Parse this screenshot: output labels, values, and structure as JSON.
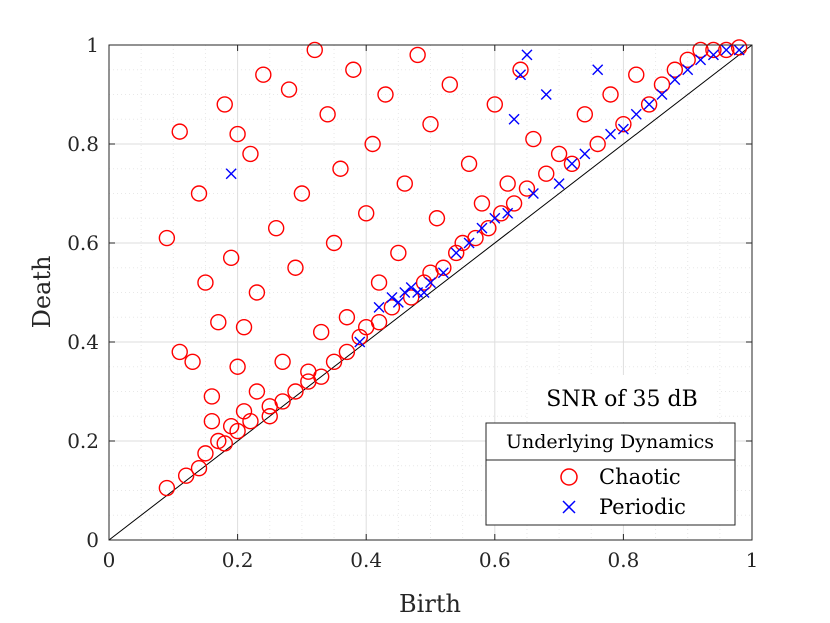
{
  "chart_data": {
    "type": "scatter",
    "title": "",
    "xlabel": "Birth",
    "ylabel": "Death",
    "xlim": [
      0,
      1
    ],
    "ylim": [
      0,
      1
    ],
    "xticks": [
      "0",
      "0.2",
      "0.4",
      "0.6",
      "0.8",
      "1"
    ],
    "yticks": [
      "0",
      "0.2",
      "0.4",
      "0.6",
      "0.8",
      "1"
    ],
    "grid": true,
    "minor_grid": true,
    "reference_line": "y = x",
    "annotation": "SNR of 35 dB",
    "legend_title": "Underlying Dynamics",
    "legend_position": "bottom-right",
    "colors": {
      "chaotic": "#ff0000",
      "periodic": "#0000ff",
      "diagonal": "#000000"
    },
    "series": [
      {
        "name": "Chaotic",
        "marker": "circle",
        "color": "#ff0000",
        "points": [
          [
            0.09,
            0.105
          ],
          [
            0.09,
            0.61
          ],
          [
            0.11,
            0.825
          ],
          [
            0.11,
            0.38
          ],
          [
            0.12,
            0.13
          ],
          [
            0.13,
            0.36
          ],
          [
            0.14,
            0.145
          ],
          [
            0.14,
            0.7
          ],
          [
            0.15,
            0.175
          ],
          [
            0.15,
            0.52
          ],
          [
            0.16,
            0.24
          ],
          [
            0.16,
            0.29
          ],
          [
            0.17,
            0.2
          ],
          [
            0.17,
            0.44
          ],
          [
            0.18,
            0.195
          ],
          [
            0.18,
            0.88
          ],
          [
            0.19,
            0.23
          ],
          [
            0.19,
            0.57
          ],
          [
            0.2,
            0.22
          ],
          [
            0.2,
            0.35
          ],
          [
            0.2,
            0.82
          ],
          [
            0.21,
            0.26
          ],
          [
            0.21,
            0.43
          ],
          [
            0.22,
            0.78
          ],
          [
            0.22,
            0.24
          ],
          [
            0.23,
            0.3
          ],
          [
            0.23,
            0.5
          ],
          [
            0.24,
            0.94
          ],
          [
            0.25,
            0.25
          ],
          [
            0.25,
            0.27
          ],
          [
            0.26,
            0.63
          ],
          [
            0.27,
            0.28
          ],
          [
            0.27,
            0.36
          ],
          [
            0.28,
            0.91
          ],
          [
            0.29,
            0.3
          ],
          [
            0.29,
            0.55
          ],
          [
            0.3,
            0.7
          ],
          [
            0.31,
            0.32
          ],
          [
            0.31,
            0.34
          ],
          [
            0.32,
            0.99
          ],
          [
            0.33,
            0.33
          ],
          [
            0.33,
            0.42
          ],
          [
            0.34,
            0.86
          ],
          [
            0.35,
            0.36
          ],
          [
            0.35,
            0.6
          ],
          [
            0.36,
            0.75
          ],
          [
            0.37,
            0.38
          ],
          [
            0.37,
            0.45
          ],
          [
            0.38,
            0.95
          ],
          [
            0.39,
            0.41
          ],
          [
            0.4,
            0.43
          ],
          [
            0.4,
            0.66
          ],
          [
            0.41,
            0.8
          ],
          [
            0.42,
            0.44
          ],
          [
            0.42,
            0.52
          ],
          [
            0.43,
            0.9
          ],
          [
            0.44,
            0.47
          ],
          [
            0.45,
            0.58
          ],
          [
            0.46,
            0.72
          ],
          [
            0.47,
            0.49
          ],
          [
            0.48,
            0.98
          ],
          [
            0.49,
            0.52
          ],
          [
            0.5,
            0.54
          ],
          [
            0.5,
            0.84
          ],
          [
            0.51,
            0.65
          ],
          [
            0.52,
            0.55
          ],
          [
            0.53,
            0.92
          ],
          [
            0.54,
            0.58
          ],
          [
            0.55,
            0.6
          ],
          [
            0.56,
            0.76
          ],
          [
            0.57,
            0.61
          ],
          [
            0.58,
            0.68
          ],
          [
            0.59,
            0.63
          ],
          [
            0.6,
            0.88
          ],
          [
            0.61,
            0.66
          ],
          [
            0.62,
            0.72
          ],
          [
            0.63,
            0.68
          ],
          [
            0.64,
            0.95
          ],
          [
            0.65,
            0.71
          ],
          [
            0.66,
            0.81
          ],
          [
            0.68,
            0.74
          ],
          [
            0.7,
            0.78
          ],
          [
            0.72,
            0.76
          ],
          [
            0.74,
            0.86
          ],
          [
            0.76,
            0.8
          ],
          [
            0.78,
            0.9
          ],
          [
            0.8,
            0.84
          ],
          [
            0.82,
            0.94
          ],
          [
            0.84,
            0.88
          ],
          [
            0.86,
            0.92
          ],
          [
            0.88,
            0.95
          ],
          [
            0.9,
            0.97
          ],
          [
            0.92,
            0.99
          ],
          [
            0.94,
            0.99
          ],
          [
            0.96,
            0.99
          ],
          [
            0.98,
            0.995
          ]
        ]
      },
      {
        "name": "Periodic",
        "marker": "x",
        "color": "#0000ff",
        "points": [
          [
            0.19,
            0.74
          ],
          [
            0.39,
            0.4
          ],
          [
            0.42,
            0.47
          ],
          [
            0.44,
            0.49
          ],
          [
            0.45,
            0.48
          ],
          [
            0.46,
            0.5
          ],
          [
            0.47,
            0.51
          ],
          [
            0.48,
            0.5
          ],
          [
            0.49,
            0.5
          ],
          [
            0.5,
            0.52
          ],
          [
            0.52,
            0.54
          ],
          [
            0.54,
            0.58
          ],
          [
            0.56,
            0.6
          ],
          [
            0.58,
            0.63
          ],
          [
            0.6,
            0.65
          ],
          [
            0.62,
            0.66
          ],
          [
            0.63,
            0.85
          ],
          [
            0.64,
            0.94
          ],
          [
            0.65,
            0.98
          ],
          [
            0.66,
            0.7
          ],
          [
            0.68,
            0.9
          ],
          [
            0.7,
            0.72
          ],
          [
            0.72,
            0.76
          ],
          [
            0.74,
            0.78
          ],
          [
            0.76,
            0.95
          ],
          [
            0.78,
            0.82
          ],
          [
            0.8,
            0.83
          ],
          [
            0.82,
            0.86
          ],
          [
            0.84,
            0.88
          ],
          [
            0.86,
            0.9
          ],
          [
            0.88,
            0.93
          ],
          [
            0.9,
            0.95
          ],
          [
            0.92,
            0.97
          ],
          [
            0.94,
            0.98
          ],
          [
            0.96,
            0.99
          ],
          [
            0.98,
            0.99
          ]
        ]
      }
    ]
  }
}
